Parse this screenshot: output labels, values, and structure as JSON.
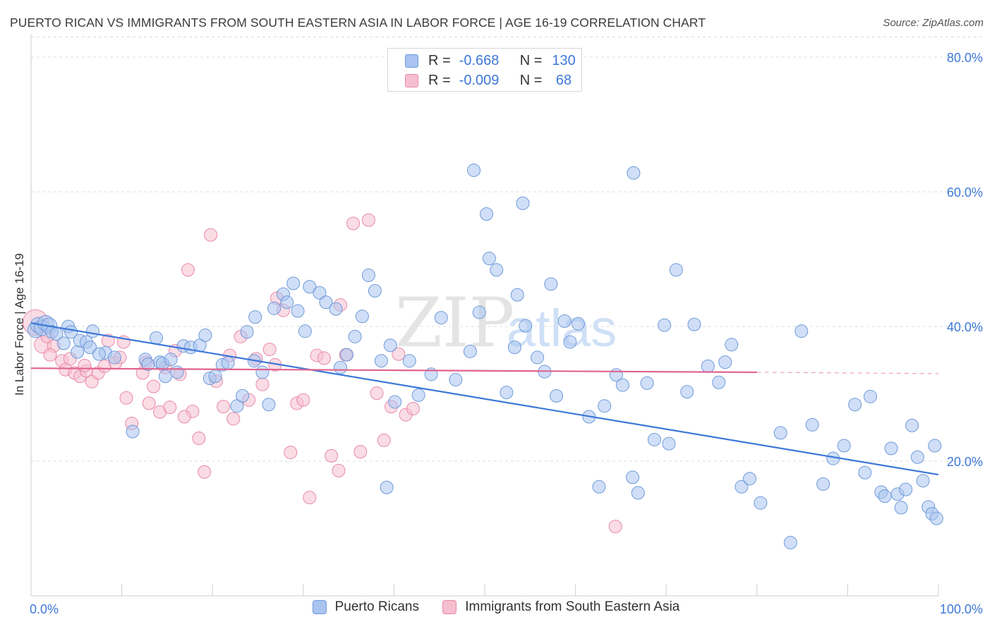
{
  "header": {
    "title": "PUERTO RICAN VS IMMIGRANTS FROM SOUTH EASTERN ASIA IN LABOR FORCE | AGE 16-19 CORRELATION CHART",
    "source": "Source: ZipAtlas.com"
  },
  "watermark": {
    "zip": "ZIP",
    "atlas": "atlas"
  },
  "stats": {
    "series1": {
      "r_label": "R =",
      "r_value": "-0.668",
      "n_label": "N =",
      "n_value": "130"
    },
    "series2": {
      "r_label": "R =",
      "r_value": "-0.009",
      "n_label": "N =",
      "n_value": " 68"
    }
  },
  "legend": {
    "series1": "Puerto Ricans",
    "series2": "Immigrants from South Eastern Asia"
  },
  "colors": {
    "blue_fill": "#a9c4f0",
    "blue_stroke": "#6f9ad9",
    "blue_line": "#3d78d8",
    "pink_fill": "#f6bfd0",
    "pink_stroke": "#e889a8",
    "pink_line": "#e0628f",
    "axis_text": "#3d78d8",
    "grid": "#dcdcdc"
  },
  "chart_data": {
    "type": "scatter",
    "title": "PUERTO RICAN VS IMMIGRANTS FROM SOUTH EASTERN ASIA IN LABOR FORCE | AGE 16-19 CORRELATION CHART",
    "xlabel": "",
    "ylabel": "In Labor Force | Age 16-19",
    "xlim": [
      0,
      100
    ],
    "ylim": [
      0,
      83
    ],
    "x_tick_labels": [
      "0.0%",
      "100.0%"
    ],
    "y_ticks": [
      20,
      40,
      60,
      80
    ],
    "y_tick_labels": [
      "20.0%",
      "40.0%",
      "60.0%",
      "80.0%"
    ],
    "grid": true,
    "series": [
      {
        "name": "Puerto Ricans",
        "trend": {
          "x": [
            0,
            100
          ],
          "y": [
            40.5,
            18.0
          ]
        },
        "points": [
          [
            0.5,
            39.5
          ],
          [
            0.8,
            40.2
          ],
          [
            1.2,
            39.8
          ],
          [
            1.6,
            40.5
          ],
          [
            2,
            40.1
          ],
          [
            2.3,
            39.2
          ],
          [
            2.8,
            38.9
          ],
          [
            3.6,
            37.5
          ],
          [
            4.1,
            40
          ],
          [
            4.4,
            39.2
          ],
          [
            5.1,
            36.2
          ],
          [
            5.4,
            37.9
          ],
          [
            6.1,
            37.7
          ],
          [
            6.8,
            39.3
          ],
          [
            6.5,
            36.9
          ],
          [
            8.2,
            36.1
          ],
          [
            9.2,
            35.4
          ],
          [
            7.5,
            35.9
          ],
          [
            11.2,
            24.4
          ],
          [
            12.6,
            35.1
          ],
          [
            13.8,
            38.3
          ],
          [
            14.2,
            34.7
          ],
          [
            12.9,
            34.4
          ],
          [
            14.8,
            32.6
          ],
          [
            14.5,
            34.5
          ],
          [
            15.4,
            35.1
          ],
          [
            16.1,
            33.2
          ],
          [
            16.8,
            37.1
          ],
          [
            17.6,
            36.9
          ],
          [
            18.6,
            37.2
          ],
          [
            19.2,
            38.7
          ],
          [
            19.7,
            32.3
          ],
          [
            20.3,
            32.6
          ],
          [
            21.1,
            34.3
          ],
          [
            21.7,
            34.6
          ],
          [
            22.7,
            28.2
          ],
          [
            23.3,
            29.7
          ],
          [
            23.8,
            39.2
          ],
          [
            24.7,
            41.4
          ],
          [
            24.6,
            34.9
          ],
          [
            25.5,
            33.2
          ],
          [
            26.2,
            28.4
          ],
          [
            26.8,
            42.7
          ],
          [
            27.8,
            44.8
          ],
          [
            28.2,
            43.6
          ],
          [
            28.9,
            46.4
          ],
          [
            29.4,
            42.3
          ],
          [
            30.2,
            39.3
          ],
          [
            30.7,
            45.9
          ],
          [
            31.8,
            45
          ],
          [
            32.5,
            43.6
          ],
          [
            33.6,
            42.6
          ],
          [
            34.1,
            33.9
          ],
          [
            34.8,
            35.8
          ],
          [
            35.7,
            38.5
          ],
          [
            36.5,
            41.5
          ],
          [
            37.2,
            47.6
          ],
          [
            37.9,
            45.3
          ],
          [
            38.6,
            34.9
          ],
          [
            39.6,
            37.2
          ],
          [
            40.1,
            28.8
          ],
          [
            41.7,
            34.9
          ],
          [
            42.7,
            29.8
          ],
          [
            44.1,
            32.9
          ],
          [
            45.2,
            41.3
          ],
          [
            46.8,
            32.1
          ],
          [
            48.4,
            36.3
          ],
          [
            49.4,
            42.1
          ],
          [
            50.2,
            56.7
          ],
          [
            50.5,
            50.1
          ],
          [
            51.3,
            48.4
          ],
          [
            52.4,
            30.2
          ],
          [
            53.3,
            36.9
          ],
          [
            53.6,
            44.7
          ],
          [
            54.5,
            40.1
          ],
          [
            55.8,
            35.4
          ],
          [
            56.6,
            33.3
          ],
          [
            57.3,
            46.3
          ],
          [
            57.9,
            29.7
          ],
          [
            58.8,
            40.8
          ],
          [
            59.4,
            37.7
          ],
          [
            60.3,
            40.4
          ],
          [
            61.5,
            26.6
          ],
          [
            62.6,
            16.2
          ],
          [
            63.2,
            28.2
          ],
          [
            64.5,
            32.8
          ],
          [
            65.2,
            31.3
          ],
          [
            66.3,
            17.6
          ],
          [
            66.9,
            15.3
          ],
          [
            67.9,
            31.6
          ],
          [
            68.7,
            23.2
          ],
          [
            69.8,
            40.2
          ],
          [
            70.3,
            22.6
          ],
          [
            71.1,
            48.4
          ],
          [
            72.3,
            30.3
          ],
          [
            73.1,
            40.3
          ],
          [
            74.6,
            34.1
          ],
          [
            75.8,
            31.7
          ],
          [
            76.5,
            34.7
          ],
          [
            77.2,
            37.3
          ],
          [
            78.3,
            16.2
          ],
          [
            79.2,
            17.4
          ],
          [
            80.4,
            13.8
          ],
          [
            82.6,
            24.2
          ],
          [
            83.7,
            7.9
          ],
          [
            84.9,
            39.3
          ],
          [
            86.1,
            25.4
          ],
          [
            87.3,
            16.6
          ],
          [
            88.4,
            20.4
          ],
          [
            89.6,
            22.3
          ],
          [
            90.8,
            28.4
          ],
          [
            91.9,
            18.3
          ],
          [
            92.5,
            29.6
          ],
          [
            93.7,
            15.4
          ],
          [
            94.1,
            14.8
          ],
          [
            94.8,
            21.9
          ],
          [
            95.5,
            15.1
          ],
          [
            95.9,
            13.1
          ],
          [
            96.4,
            15.8
          ],
          [
            97.1,
            25.3
          ],
          [
            97.7,
            20.6
          ],
          [
            98.3,
            17.1
          ],
          [
            98.9,
            13.2
          ],
          [
            99.3,
            12.2
          ],
          [
            99.6,
            22.3
          ],
          [
            99.8,
            11.5
          ],
          [
            54.2,
            58.3
          ],
          [
            48.8,
            63.2
          ],
          [
            66.4,
            62.8
          ],
          [
            39.2,
            16.1
          ]
        ]
      },
      {
        "name": "Immigrants from South Eastern Asia",
        "trend": {
          "x": [
            0,
            80
          ],
          "y": [
            33.8,
            33.2
          ]
        },
        "trend_dashed": {
          "x": [
            80,
            100
          ],
          "y": [
            33.2,
            33.0
          ]
        },
        "points": [
          [
            0.5,
            40.6
          ],
          [
            1.3,
            37.3
          ],
          [
            1.8,
            38.5
          ],
          [
            2.5,
            37.1
          ],
          [
            3.4,
            34.9
          ],
          [
            3.8,
            33.6
          ],
          [
            4.3,
            35.2
          ],
          [
            4.8,
            33.1
          ],
          [
            5.4,
            32.6
          ],
          [
            6.1,
            33.4
          ],
          [
            6.7,
            31.8
          ],
          [
            7.4,
            33.1
          ],
          [
            8.1,
            34.1
          ],
          [
            8.5,
            37.9
          ],
          [
            9.3,
            34.6
          ],
          [
            9.8,
            35.4
          ],
          [
            10.5,
            29.4
          ],
          [
            11.1,
            25.6
          ],
          [
            12.3,
            33.1
          ],
          [
            13,
            28.6
          ],
          [
            13.5,
            31.1
          ],
          [
            14.2,
            27.3
          ],
          [
            14.8,
            33.9
          ],
          [
            15.3,
            28
          ],
          [
            15.9,
            36.4
          ],
          [
            16.4,
            32.9
          ],
          [
            17.3,
            48.4
          ],
          [
            17.8,
            27.4
          ],
          [
            18.5,
            23.4
          ],
          [
            19.1,
            18.4
          ],
          [
            19.8,
            53.6
          ],
          [
            20.4,
            31.9
          ],
          [
            21.2,
            28.1
          ],
          [
            22.3,
            26.3
          ],
          [
            23.1,
            38.5
          ],
          [
            24,
            29.1
          ],
          [
            24.8,
            35.2
          ],
          [
            25.5,
            31.4
          ],
          [
            26.3,
            36.6
          ],
          [
            27.1,
            44.2
          ],
          [
            27.8,
            42.4
          ],
          [
            28.6,
            21.3
          ],
          [
            29.3,
            28.6
          ],
          [
            30,
            29.1
          ],
          [
            30.7,
            14.6
          ],
          [
            31.5,
            35.7
          ],
          [
            32.3,
            35.3
          ],
          [
            33.1,
            20.8
          ],
          [
            33.9,
            18.6
          ],
          [
            34.7,
            35.8
          ],
          [
            35.5,
            55.3
          ],
          [
            36.3,
            21.4
          ],
          [
            37.2,
            55.8
          ],
          [
            38.1,
            30.1
          ],
          [
            38.9,
            23.1
          ],
          [
            39.7,
            28.1
          ],
          [
            40.5,
            35.9
          ],
          [
            41.3,
            26.9
          ],
          [
            42.1,
            27.8
          ],
          [
            64.4,
            10.3
          ],
          [
            2.1,
            35.8
          ],
          [
            5.9,
            34.2
          ],
          [
            10.2,
            37.7
          ],
          [
            12.7,
            34.7
          ],
          [
            16.9,
            26.6
          ],
          [
            21.9,
            35.7
          ],
          [
            26.9,
            34.3
          ],
          [
            34.1,
            43.2
          ]
        ]
      }
    ]
  }
}
